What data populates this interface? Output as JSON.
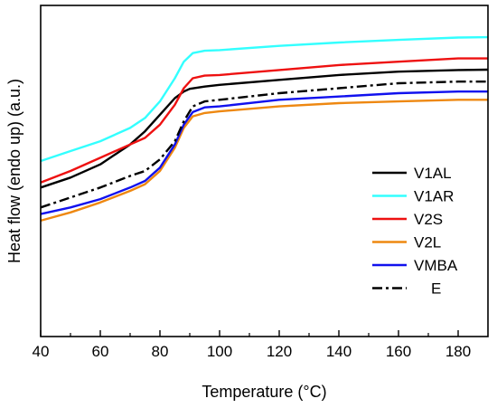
{
  "chart_data": {
    "type": "line",
    "title": "",
    "xlabel": "Temperature (°C)",
    "ylabel": "Heat flow (endo up) (a.u.)",
    "xlim": [
      40,
      190
    ],
    "ylim": [
      0,
      100
    ],
    "x_ticks": [
      40,
      60,
      80,
      100,
      120,
      140,
      160,
      180
    ],
    "y_tick_labels_shown": false,
    "grid": false,
    "legend_position": "right",
    "series": [
      {
        "name": "V1AL",
        "color": "#000000",
        "dash": "solid",
        "points": [
          [
            40,
            45
          ],
          [
            50,
            48
          ],
          [
            60,
            52
          ],
          [
            70,
            58
          ],
          [
            75,
            62
          ],
          [
            80,
            67
          ],
          [
            85,
            72
          ],
          [
            88,
            74
          ],
          [
            90,
            74.8
          ],
          [
            95,
            75.5
          ],
          [
            100,
            76
          ],
          [
            120,
            77.5
          ],
          [
            140,
            79
          ],
          [
            160,
            80
          ],
          [
            180,
            80.5
          ],
          [
            190,
            80.6
          ]
        ]
      },
      {
        "name": "V1AR",
        "color": "#33ffff",
        "dash": "solid",
        "points": [
          [
            40,
            53
          ],
          [
            50,
            56
          ],
          [
            60,
            59
          ],
          [
            70,
            63
          ],
          [
            75,
            66
          ],
          [
            80,
            71
          ],
          [
            85,
            78
          ],
          [
            88,
            83
          ],
          [
            91,
            85.6
          ],
          [
            95,
            86.3
          ],
          [
            100,
            86.5
          ],
          [
            120,
            87.8
          ],
          [
            140,
            88.8
          ],
          [
            160,
            89.6
          ],
          [
            180,
            90.3
          ],
          [
            190,
            90.4
          ]
        ]
      },
      {
        "name": "V2S",
        "color": "#ee1111",
        "dash": "solid",
        "points": [
          [
            40,
            46.5
          ],
          [
            50,
            50
          ],
          [
            60,
            54
          ],
          [
            70,
            58
          ],
          [
            75,
            60
          ],
          [
            80,
            64
          ],
          [
            85,
            70
          ],
          [
            88,
            75
          ],
          [
            91,
            78
          ],
          [
            95,
            78.8
          ],
          [
            100,
            79
          ],
          [
            120,
            80.5
          ],
          [
            140,
            82
          ],
          [
            160,
            83
          ],
          [
            180,
            84
          ],
          [
            190,
            84
          ]
        ]
      },
      {
        "name": "V2L",
        "color": "#ee8811",
        "dash": "solid",
        "points": [
          [
            40,
            35
          ],
          [
            50,
            37.5
          ],
          [
            60,
            40.5
          ],
          [
            70,
            44
          ],
          [
            75,
            46
          ],
          [
            80,
            50
          ],
          [
            85,
            57
          ],
          [
            88,
            63
          ],
          [
            91,
            66.5
          ],
          [
            95,
            67.5
          ],
          [
            100,
            68
          ],
          [
            120,
            69.5
          ],
          [
            140,
            70.5
          ],
          [
            160,
            71
          ],
          [
            180,
            71.5
          ],
          [
            190,
            71.5
          ]
        ]
      },
      {
        "name": "VMBA",
        "color": "#1111ee",
        "dash": "solid",
        "points": [
          [
            40,
            37
          ],
          [
            50,
            39
          ],
          [
            60,
            41.5
          ],
          [
            70,
            45
          ],
          [
            75,
            47
          ],
          [
            80,
            51
          ],
          [
            85,
            58
          ],
          [
            88,
            64
          ],
          [
            91,
            67.8
          ],
          [
            95,
            69.2
          ],
          [
            100,
            69.5
          ],
          [
            120,
            71.5
          ],
          [
            140,
            72.5
          ],
          [
            160,
            73.5
          ],
          [
            180,
            74
          ],
          [
            190,
            74
          ]
        ]
      },
      {
        "name": "E",
        "color": "#000000",
        "dash": "dashdot",
        "points": [
          [
            40,
            39
          ],
          [
            50,
            42
          ],
          [
            60,
            45
          ],
          [
            70,
            48.5
          ],
          [
            75,
            50
          ],
          [
            80,
            53.5
          ],
          [
            85,
            59
          ],
          [
            88,
            65
          ],
          [
            91,
            69.5
          ],
          [
            95,
            71
          ],
          [
            100,
            71.5
          ],
          [
            120,
            73.5
          ],
          [
            140,
            75
          ],
          [
            160,
            76.5
          ],
          [
            180,
            77
          ],
          [
            190,
            77
          ]
        ]
      }
    ]
  }
}
